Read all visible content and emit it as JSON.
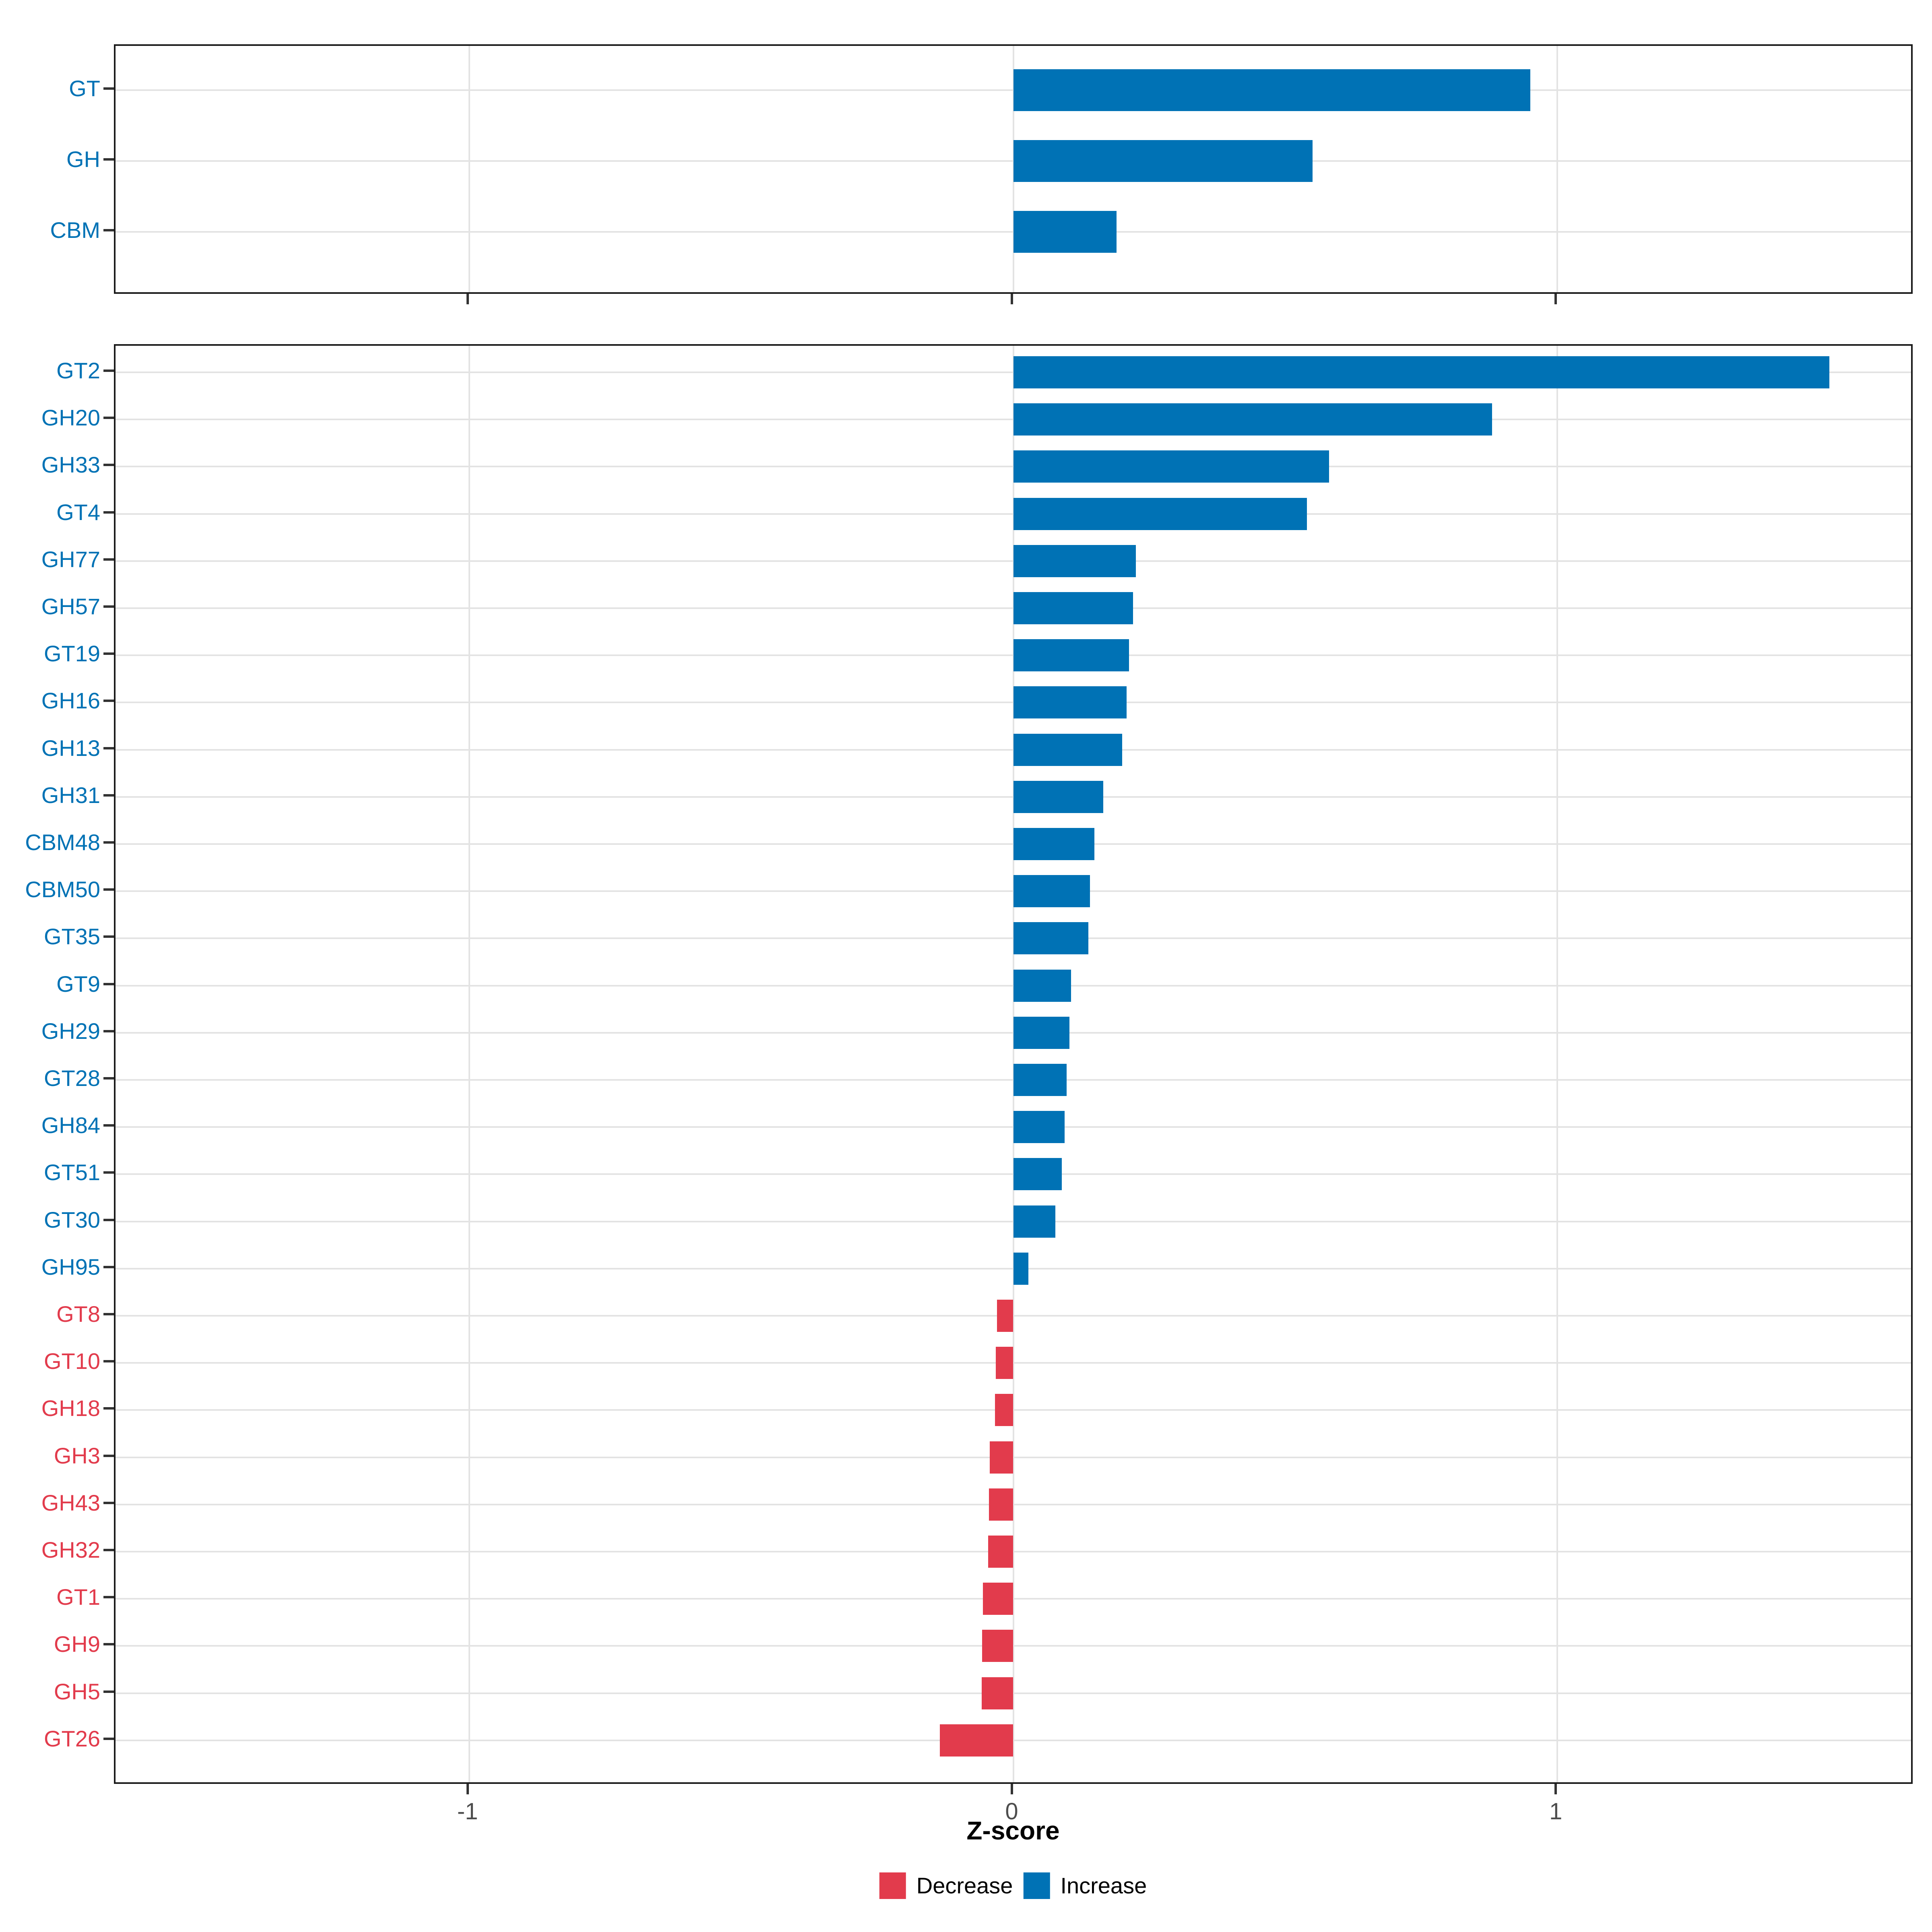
{
  "colors": {
    "increase": "#0072B5",
    "decrease": "#E23B4C",
    "gridline": "#E3E3E3",
    "panel_border": "#1A1A1A",
    "axis_tick": "#333333",
    "x_tick_label": "#4D4D4D",
    "background": "#FFFFFF"
  },
  "x_axis": {
    "label": "Z-score",
    "ticks": [
      "-1",
      "0",
      "1"
    ],
    "tick_values": [
      -1,
      0,
      1
    ],
    "xlim": [
      -1.65,
      1.65
    ]
  },
  "legend": {
    "position": "bottom",
    "items": [
      {
        "label": "Decrease",
        "color_key": "decrease"
      },
      {
        "label": "Increase",
        "color_key": "increase"
      }
    ]
  },
  "chart_data": [
    {
      "type": "bar",
      "orientation": "horizontal",
      "panel": "cazyme-classes",
      "title": "",
      "xlabel": "Z-score",
      "ylabel": "",
      "xlim": [
        -1.65,
        1.65
      ],
      "grid": true,
      "legend_position": "bottom",
      "categories": [
        "GT",
        "GH",
        "CBM"
      ],
      "values": [
        0.95,
        0.55,
        0.19
      ],
      "directions": [
        "Increase",
        "Increase",
        "Increase"
      ]
    },
    {
      "type": "bar",
      "orientation": "horizontal",
      "panel": "cazyme-families",
      "title": "",
      "xlabel": "Z-score",
      "ylabel": "",
      "xlim": [
        -1.65,
        1.65
      ],
      "grid": true,
      "legend_position": "bottom",
      "categories": [
        "GT2",
        "GH20",
        "GH33",
        "GT4",
        "GH77",
        "GH57",
        "GT19",
        "GH16",
        "GH13",
        "GH31",
        "CBM48",
        "CBM50",
        "GT35",
        "GT9",
        "GH29",
        "GT28",
        "GH84",
        "GT51",
        "GT30",
        "GH95",
        "GT8",
        "GT10",
        "GH18",
        "GH3",
        "GH43",
        "GH32",
        "GT1",
        "GH9",
        "GH5",
        "GT26"
      ],
      "values": [
        1.5,
        0.88,
        0.58,
        0.54,
        0.225,
        0.22,
        0.213,
        0.208,
        0.2,
        0.165,
        0.149,
        0.141,
        0.138,
        0.106,
        0.103,
        0.098,
        0.094,
        0.089,
        0.077,
        0.028,
        -0.03,
        -0.032,
        -0.034,
        -0.043,
        -0.045,
        -0.046,
        -0.056,
        -0.057,
        -0.058,
        -0.135
      ],
      "directions": [
        "Increase",
        "Increase",
        "Increase",
        "Increase",
        "Increase",
        "Increase",
        "Increase",
        "Increase",
        "Increase",
        "Increase",
        "Increase",
        "Increase",
        "Increase",
        "Increase",
        "Increase",
        "Increase",
        "Increase",
        "Increase",
        "Increase",
        "Increase",
        "Decrease",
        "Decrease",
        "Decrease",
        "Decrease",
        "Decrease",
        "Decrease",
        "Decrease",
        "Decrease",
        "Decrease",
        "Decrease"
      ]
    }
  ]
}
